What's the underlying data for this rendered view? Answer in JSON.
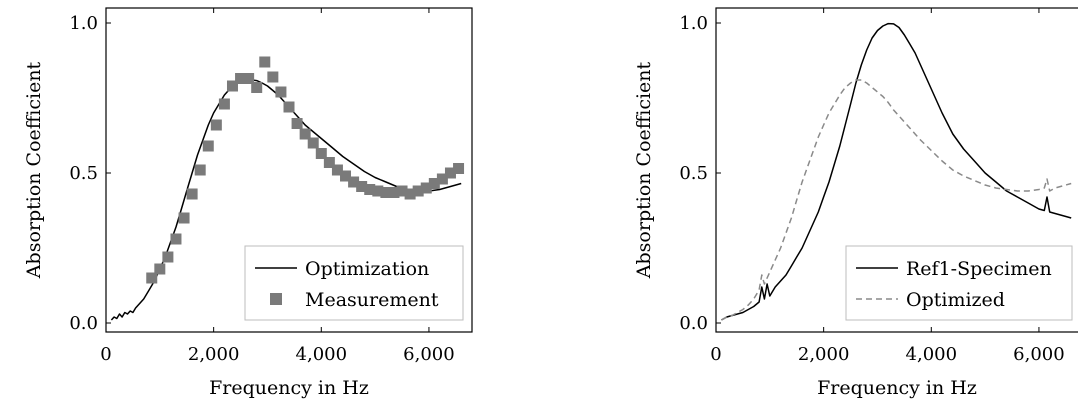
{
  "chart_data": [
    {
      "type": "line",
      "xlabel": "Frequency in Hz",
      "ylabel": "Absorption Coefficient",
      "xlim": [
        0,
        6800
      ],
      "ylim": [
        -0.03,
        1.05
      ],
      "xticks": [
        0,
        2000,
        4000,
        6000
      ],
      "xtick_labels": [
        "0",
        "2,000",
        "4,000",
        "6,000"
      ],
      "yticks": [
        0,
        0.5,
        1
      ],
      "ytick_labels": [
        "0.0",
        "0.5",
        "1.0"
      ],
      "grid": false,
      "legend_position": "bottom-right",
      "series": [
        {
          "name": "Optimization",
          "style": "solid-line",
          "color": "#000000",
          "x": [
            100,
            150,
            200,
            250,
            300,
            350,
            400,
            450,
            500,
            550,
            600,
            700,
            800,
            900,
            1000,
            1100,
            1200,
            1300,
            1400,
            1500,
            1600,
            1700,
            1800,
            1900,
            2000,
            2100,
            2200,
            2300,
            2400,
            2500,
            2600,
            2700,
            2800,
            2900,
            3000,
            3100,
            3200,
            3300,
            3400,
            3500,
            3600,
            3700,
            3800,
            3900,
            4000,
            4200,
            4400,
            4600,
            4800,
            5000,
            5200,
            5400,
            5600,
            5800,
            6000,
            6200,
            6400,
            6600
          ],
          "y": [
            0.01,
            0.02,
            0.015,
            0.03,
            0.02,
            0.035,
            0.03,
            0.04,
            0.035,
            0.05,
            0.06,
            0.08,
            0.11,
            0.14,
            0.18,
            0.22,
            0.27,
            0.32,
            0.38,
            0.44,
            0.5,
            0.56,
            0.61,
            0.66,
            0.7,
            0.73,
            0.76,
            0.78,
            0.795,
            0.805,
            0.81,
            0.81,
            0.808,
            0.8,
            0.79,
            0.775,
            0.76,
            0.74,
            0.72,
            0.7,
            0.68,
            0.66,
            0.645,
            0.63,
            0.615,
            0.585,
            0.555,
            0.53,
            0.505,
            0.485,
            0.47,
            0.455,
            0.445,
            0.44,
            0.44,
            0.445,
            0.455,
            0.465
          ]
        },
        {
          "name": "Measurement",
          "style": "square-markers",
          "color": "#7a7a7a",
          "x": [
            850,
            1000,
            1150,
            1300,
            1450,
            1600,
            1750,
            1900,
            2050,
            2200,
            2350,
            2500,
            2650,
            2800,
            2950,
            3100,
            3250,
            3400,
            3550,
            3700,
            3850,
            4000,
            4150,
            4300,
            4450,
            4600,
            4750,
            4900,
            5050,
            5200,
            5350,
            5500,
            5650,
            5800,
            5950,
            6100,
            6250,
            6400,
            6550
          ],
          "y": [
            0.15,
            0.18,
            0.22,
            0.28,
            0.35,
            0.43,
            0.51,
            0.59,
            0.66,
            0.73,
            0.79,
            0.815,
            0.815,
            0.785,
            0.87,
            0.82,
            0.77,
            0.72,
            0.665,
            0.63,
            0.6,
            0.565,
            0.535,
            0.51,
            0.49,
            0.47,
            0.455,
            0.445,
            0.44,
            0.435,
            0.435,
            0.44,
            0.43,
            0.44,
            0.45,
            0.465,
            0.48,
            0.5,
            0.515
          ]
        }
      ]
    },
    {
      "type": "line",
      "xlabel": "Frequency in Hz",
      "ylabel": "Absorption Coefficient",
      "xlim": [
        0,
        6800
      ],
      "ylim": [
        -0.03,
        1.05
      ],
      "xticks": [
        0,
        2000,
        4000,
        6000
      ],
      "xtick_labels": [
        "0",
        "2,000",
        "4,000",
        "6,000"
      ],
      "yticks": [
        0,
        0.5,
        1
      ],
      "ytick_labels": [
        "0.0",
        "0.5",
        "1.0"
      ],
      "grid": false,
      "legend_position": "bottom-right",
      "series": [
        {
          "name": "Ref1-Specimen",
          "style": "solid-line",
          "color": "#000000",
          "x": [
            100,
            200,
            300,
            400,
            500,
            600,
            700,
            800,
            850,
            900,
            950,
            1000,
            1100,
            1200,
            1300,
            1400,
            1500,
            1600,
            1700,
            1800,
            1900,
            2000,
            2100,
            2200,
            2300,
            2400,
            2500,
            2600,
            2700,
            2800,
            2900,
            3000,
            3100,
            3200,
            3300,
            3400,
            3500,
            3600,
            3700,
            3800,
            4000,
            4200,
            4400,
            4600,
            4800,
            5000,
            5200,
            5400,
            5600,
            5800,
            6000,
            6100,
            6150,
            6200,
            6300,
            6400,
            6500,
            6600
          ],
          "y": [
            0.01,
            0.02,
            0.025,
            0.03,
            0.035,
            0.045,
            0.055,
            0.07,
            0.12,
            0.08,
            0.13,
            0.09,
            0.12,
            0.14,
            0.16,
            0.19,
            0.22,
            0.25,
            0.29,
            0.33,
            0.37,
            0.42,
            0.47,
            0.53,
            0.59,
            0.66,
            0.73,
            0.8,
            0.86,
            0.91,
            0.95,
            0.975,
            0.99,
            0.998,
            0.997,
            0.985,
            0.96,
            0.93,
            0.9,
            0.86,
            0.78,
            0.7,
            0.63,
            0.58,
            0.54,
            0.5,
            0.47,
            0.44,
            0.42,
            0.4,
            0.38,
            0.375,
            0.42,
            0.37,
            0.365,
            0.36,
            0.355,
            0.35
          ]
        },
        {
          "name": "Optimized",
          "style": "dashed-line",
          "color": "#8a8a8a",
          "x": [
            100,
            200,
            300,
            400,
            500,
            600,
            700,
            800,
            850,
            900,
            1000,
            1100,
            1200,
            1300,
            1400,
            1500,
            1600,
            1700,
            1800,
            1900,
            2000,
            2100,
            2200,
            2300,
            2400,
            2500,
            2600,
            2700,
            2800,
            2900,
            3000,
            3100,
            3200,
            3300,
            3400,
            3500,
            3600,
            3700,
            3800,
            4000,
            4200,
            4400,
            4600,
            4800,
            5000,
            5200,
            5400,
            5600,
            5800,
            6000,
            6100,
            6150,
            6200,
            6300,
            6400,
            6500,
            6600
          ],
          "y": [
            0.01,
            0.02,
            0.025,
            0.035,
            0.045,
            0.06,
            0.08,
            0.11,
            0.16,
            0.13,
            0.17,
            0.21,
            0.25,
            0.3,
            0.35,
            0.41,
            0.47,
            0.52,
            0.57,
            0.62,
            0.66,
            0.7,
            0.73,
            0.76,
            0.785,
            0.8,
            0.81,
            0.81,
            0.8,
            0.785,
            0.77,
            0.755,
            0.735,
            0.71,
            0.69,
            0.67,
            0.65,
            0.63,
            0.61,
            0.575,
            0.54,
            0.51,
            0.49,
            0.475,
            0.46,
            0.45,
            0.445,
            0.44,
            0.44,
            0.445,
            0.45,
            0.48,
            0.44,
            0.45,
            0.455,
            0.46,
            0.465
          ]
        }
      ]
    }
  ]
}
